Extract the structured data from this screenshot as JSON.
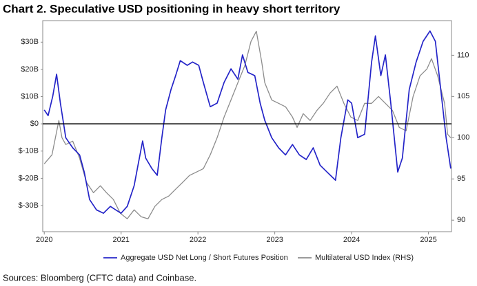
{
  "chart_data": {
    "type": "line",
    "title": "Chart 2. Speculative USD positioning in heavy short territory",
    "source": "Sources: Bloomberg (CFTC data) and Coinbase.",
    "xlim": [
      2019.98,
      2025.3
    ],
    "xticks": [
      2020,
      2021,
      2022,
      2023,
      2024,
      2025
    ],
    "ylim": [
      -39.6,
      37.9
    ],
    "yticks": [
      {
        "value": 30,
        "label": "$30B"
      },
      {
        "value": 20,
        "label": "$20B"
      },
      {
        "value": 10,
        "label": "$10B"
      },
      {
        "value": 0,
        "label": "$0"
      },
      {
        "value": -10,
        "label": "$-10B"
      },
      {
        "value": -20,
        "label": "$-20B"
      },
      {
        "value": -30,
        "label": "$-30B"
      }
    ],
    "y2lim": [
      88.6,
      114.2
    ],
    "y2ticks": [
      90,
      95,
      100,
      105,
      110
    ],
    "zero_line": true,
    "legend": "bottom",
    "series": [
      {
        "name": "Aggregate USD Net Long / Short Futures Position",
        "color": "#2424c8",
        "x": [
          2020.0,
          2020.05,
          2020.11,
          2020.16,
          2020.21,
          2020.28,
          2020.37,
          2020.46,
          2020.52,
          2020.59,
          2020.68,
          2020.77,
          2020.86,
          2020.93,
          2021.0,
          2021.08,
          2021.17,
          2021.22,
          2021.28,
          2021.32,
          2021.4,
          2021.47,
          2021.53,
          2021.58,
          2021.65,
          2021.71,
          2021.77,
          2021.86,
          2021.93,
          2022.01,
          2022.07,
          2022.16,
          2022.25,
          2022.34,
          2022.43,
          2022.52,
          2022.58,
          2022.65,
          2022.74,
          2022.81,
          2022.87,
          2022.96,
          2023.05,
          2023.14,
          2023.23,
          2023.32,
          2023.41,
          2023.5,
          2023.59,
          2023.68,
          2023.79,
          2023.86,
          2023.95,
          2024.0,
          2024.08,
          2024.17,
          2024.26,
          2024.31,
          2024.38,
          2024.44,
          2024.51,
          2024.6,
          2024.66,
          2024.75,
          2024.84,
          2024.93,
          2025.02,
          2025.09,
          2025.16,
          2025.23,
          2025.29
        ],
        "values": [
          5.1,
          3.0,
          10.1,
          18.2,
          7.6,
          -5.1,
          -8.8,
          -11.4,
          -17.7,
          -27.8,
          -31.6,
          -32.8,
          -30.3,
          -31.6,
          -32.8,
          -30.3,
          -22.7,
          -15.2,
          -6.3,
          -12.6,
          -16.4,
          -18.9,
          -5.1,
          5.1,
          12.6,
          17.7,
          23.2,
          21.5,
          22.7,
          21.5,
          15.2,
          6.3,
          7.6,
          15.2,
          20.2,
          16.4,
          25.3,
          18.9,
          17.7,
          7.6,
          1.3,
          -5.1,
          -8.8,
          -11.4,
          -7.6,
          -11.4,
          -13.1,
          -8.8,
          -15.2,
          -17.7,
          -20.7,
          -5.1,
          8.8,
          7.6,
          -5.1,
          -3.8,
          22.7,
          32.3,
          17.7,
          25.3,
          7.6,
          -17.7,
          -12.6,
          12.6,
          22.7,
          30.3,
          34.1,
          30.3,
          12.6,
          -5.1,
          -16.4
        ]
      },
      {
        "name": "Multilateral USD Index (RHS)",
        "color": "#8c8c8c",
        "axis": "y2",
        "x": [
          2020.0,
          2020.1,
          2020.19,
          2020.23,
          2020.28,
          2020.37,
          2020.46,
          2020.55,
          2020.64,
          2020.73,
          2020.81,
          2020.9,
          2020.99,
          2021.08,
          2021.17,
          2021.26,
          2021.35,
          2021.44,
          2021.53,
          2021.62,
          2021.71,
          2021.8,
          2021.89,
          2021.98,
          2022.07,
          2022.16,
          2022.25,
          2022.34,
          2022.43,
          2022.52,
          2022.61,
          2022.69,
          2022.76,
          2022.83,
          2022.87,
          2022.96,
          2023.05,
          2023.14,
          2023.23,
          2023.29,
          2023.37,
          2023.46,
          2023.55,
          2023.63,
          2023.72,
          2023.81,
          2023.9,
          2023.99,
          2024.08,
          2024.17,
          2024.26,
          2024.35,
          2024.44,
          2024.53,
          2024.62,
          2024.71,
          2024.8,
          2024.89,
          2024.98,
          2025.04,
          2025.12,
          2025.21,
          2025.25,
          2025.29
        ],
        "values": [
          96.83,
          97.92,
          102.08,
          100.0,
          99.17,
          99.58,
          97.5,
          94.58,
          93.33,
          94.17,
          93.33,
          92.5,
          90.83,
          90.17,
          91.25,
          90.42,
          90.17,
          91.67,
          92.5,
          92.92,
          93.75,
          94.58,
          95.42,
          95.83,
          96.25,
          97.92,
          100.0,
          102.5,
          104.58,
          106.67,
          108.75,
          111.67,
          112.92,
          109.17,
          106.67,
          104.58,
          104.17,
          103.75,
          102.5,
          101.25,
          102.92,
          102.08,
          103.33,
          104.17,
          105.42,
          106.25,
          104.17,
          102.5,
          102.08,
          104.17,
          104.17,
          105.0,
          104.17,
          103.33,
          101.25,
          100.83,
          105.0,
          107.5,
          108.33,
          109.58,
          107.5,
          104.17,
          100.42,
          100.0
        ]
      }
    ]
  }
}
